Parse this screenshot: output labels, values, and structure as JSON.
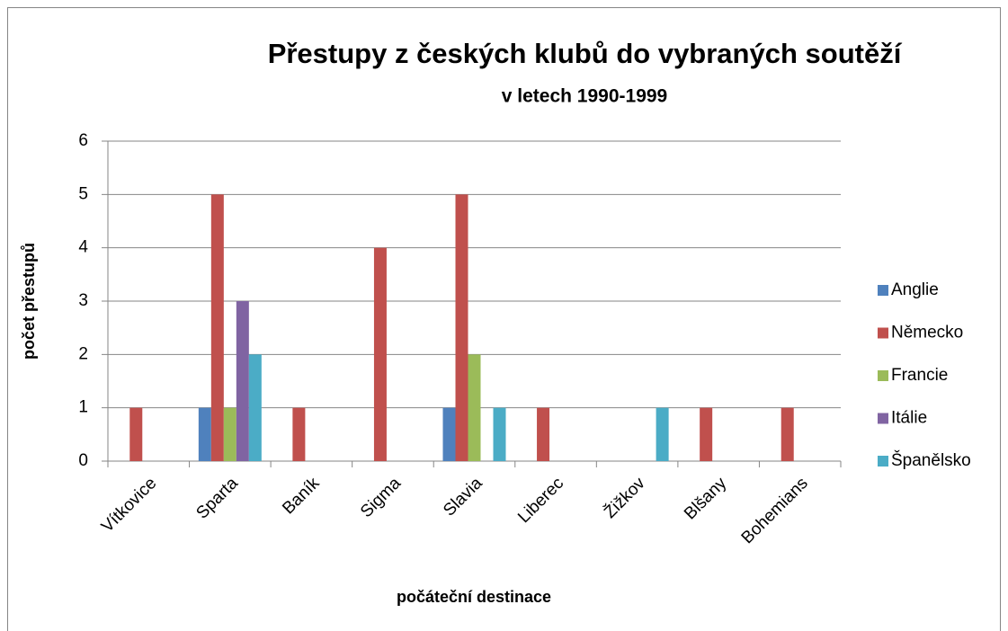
{
  "chart_data": {
    "type": "bar",
    "title": "Přestupy z českých klubů do vybraných soutěží",
    "subtitle": "v letech 1990-1999",
    "y_label": "počet přestupů",
    "x_label": "počáteční destinace",
    "categories": [
      "Vítkovice",
      "Sparta",
      "Baník",
      "Sigma",
      "Slavia",
      "Liberec",
      "Žižkov",
      "Blšany",
      "Bohemians"
    ],
    "series": [
      {
        "name": "Anglie",
        "color": "#4f81bd",
        "values": [
          0,
          1,
          0,
          0,
          1,
          0,
          0,
          0,
          0
        ]
      },
      {
        "name": "Německo",
        "color": "#c0504d",
        "values": [
          1,
          5,
          1,
          4,
          5,
          1,
          0,
          1,
          1
        ]
      },
      {
        "name": "Francie",
        "color": "#9bbb59",
        "values": [
          0,
          1,
          0,
          0,
          2,
          0,
          0,
          0,
          0
        ]
      },
      {
        "name": "Itálie",
        "color": "#8064a2",
        "values": [
          0,
          3,
          0,
          0,
          0,
          0,
          0,
          0,
          0
        ]
      },
      {
        "name": "Španělsko",
        "color": "#4bacc6",
        "values": [
          0,
          2,
          0,
          0,
          1,
          0,
          1,
          0,
          0
        ]
      }
    ],
    "ylim": [
      0,
      6
    ],
    "yticks": [
      0,
      1,
      2,
      3,
      4,
      5,
      6
    ],
    "grid": true,
    "legend": "right"
  }
}
